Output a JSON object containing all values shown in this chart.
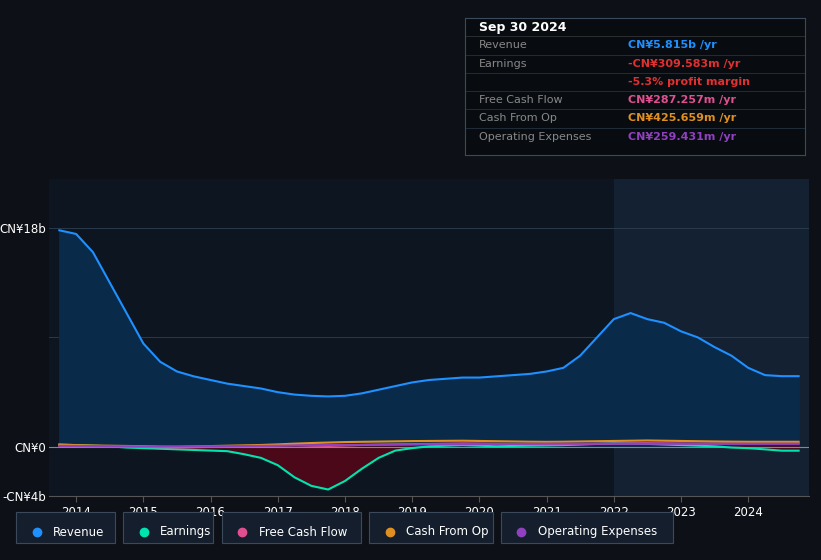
{
  "bg_color": "#0d1117",
  "plot_bg_color": "#0d1520",
  "grid_color": "#2a3a4a",
  "title": "Sep 30 2024",
  "ylim_low": -4000000000,
  "ylim_high": 22000000000,
  "xlim_low": 2013.6,
  "xlim_high": 2024.9,
  "highlight_x_start": 2022.0,
  "highlight_x_end": 2024.9,
  "revenue_color": "#1e90ff",
  "revenue_fill": "#0a2a4a",
  "earnings_color": "#00e5b0",
  "earnings_fill_neg": "#4a0818",
  "cash_flow_color": "#e05090",
  "cash_from_op_color": "#e09020",
  "op_expenses_color": "#9040c0",
  "xtick_years": [
    2014,
    2015,
    2016,
    2017,
    2018,
    2019,
    2020,
    2021,
    2022,
    2023,
    2024
  ],
  "info_title": "Sep 30 2024",
  "info_rows": [
    {
      "label": "Revenue",
      "value": "CN¥5.815b /yr",
      "value_color": "#1e90ff"
    },
    {
      "label": "Earnings",
      "value": "-CN¥309.583m /yr",
      "value_color": "#e03030"
    },
    {
      "label": "",
      "value": "-5.3% profit margin",
      "value_color": "#e03030"
    },
    {
      "label": "Free Cash Flow",
      "value": "CN¥287.257m /yr",
      "value_color": "#e05090"
    },
    {
      "label": "Cash From Op",
      "value": "CN¥425.659m /yr",
      "value_color": "#e09020"
    },
    {
      "label": "Operating Expenses",
      "value": "CN¥259.431m /yr",
      "value_color": "#9040c0"
    }
  ],
  "legend_items": [
    {
      "label": "Revenue",
      "color": "#1e90ff"
    },
    {
      "label": "Earnings",
      "color": "#00e5b0"
    },
    {
      "label": "Free Cash Flow",
      "color": "#e05090"
    },
    {
      "label": "Cash From Op",
      "color": "#e09020"
    },
    {
      "label": "Operating Expenses",
      "color": "#9040c0"
    }
  ],
  "years": [
    2013.75,
    2014.0,
    2014.25,
    2014.5,
    2014.75,
    2015.0,
    2015.25,
    2015.5,
    2015.75,
    2016.0,
    2016.25,
    2016.5,
    2016.75,
    2017.0,
    2017.25,
    2017.5,
    2017.75,
    2018.0,
    2018.25,
    2018.5,
    2018.75,
    2019.0,
    2019.25,
    2019.5,
    2019.75,
    2020.0,
    2020.25,
    2020.5,
    2020.75,
    2021.0,
    2021.25,
    2021.5,
    2021.75,
    2022.0,
    2022.25,
    2022.5,
    2022.75,
    2023.0,
    2023.25,
    2023.5,
    2023.75,
    2024.0,
    2024.25,
    2024.5,
    2024.75
  ],
  "revenue": [
    17800000000,
    17500000000,
    16000000000,
    13500000000,
    11000000000,
    8500000000,
    7000000000,
    6200000000,
    5800000000,
    5500000000,
    5200000000,
    5000000000,
    4800000000,
    4500000000,
    4300000000,
    4200000000,
    4150000000,
    4200000000,
    4400000000,
    4700000000,
    5000000000,
    5300000000,
    5500000000,
    5600000000,
    5700000000,
    5700000000,
    5800000000,
    5900000000,
    6000000000,
    6200000000,
    6500000000,
    7500000000,
    9000000000,
    10500000000,
    11000000000,
    10500000000,
    10200000000,
    9500000000,
    9000000000,
    8200000000,
    7500000000,
    6500000000,
    5900000000,
    5815000000,
    5815000000
  ],
  "earnings": [
    200000000,
    150000000,
    100000000,
    50000000,
    -50000000,
    -100000000,
    -150000000,
    -200000000,
    -250000000,
    -300000000,
    -350000000,
    -600000000,
    -900000000,
    -1500000000,
    -2500000000,
    -3200000000,
    -3500000000,
    -2800000000,
    -1800000000,
    -900000000,
    -300000000,
    -100000000,
    50000000,
    100000000,
    150000000,
    100000000,
    50000000,
    80000000,
    100000000,
    120000000,
    150000000,
    200000000,
    250000000,
    300000000,
    280000000,
    250000000,
    200000000,
    150000000,
    100000000,
    50000000,
    -50000000,
    -100000000,
    -200000000,
    -309000000,
    -309000000
  ],
  "free_cash_flow": [
    100000000,
    80000000,
    60000000,
    40000000,
    20000000,
    0,
    -30000000,
    -50000000,
    -30000000,
    0,
    30000000,
    60000000,
    80000000,
    120000000,
    150000000,
    100000000,
    80000000,
    120000000,
    160000000,
    190000000,
    210000000,
    230000000,
    250000000,
    270000000,
    290000000,
    280000000,
    260000000,
    240000000,
    220000000,
    200000000,
    210000000,
    230000000,
    250000000,
    270000000,
    290000000,
    310000000,
    295000000,
    280000000,
    265000000,
    280000000,
    290000000,
    285000000,
    287000000,
    287000000,
    287000000
  ],
  "cash_from_op": [
    180000000,
    150000000,
    120000000,
    100000000,
    80000000,
    60000000,
    20000000,
    10000000,
    40000000,
    70000000,
    100000000,
    130000000,
    160000000,
    210000000,
    270000000,
    320000000,
    360000000,
    400000000,
    420000000,
    440000000,
    460000000,
    480000000,
    490000000,
    500000000,
    510000000,
    490000000,
    470000000,
    450000000,
    430000000,
    420000000,
    430000000,
    450000000,
    470000000,
    490000000,
    510000000,
    530000000,
    510000000,
    490000000,
    470000000,
    450000000,
    435000000,
    425000000,
    425000000,
    425000000,
    425000000
  ],
  "op_expenses": [
    90000000,
    80000000,
    70000000,
    60000000,
    50000000,
    40000000,
    30000000,
    35000000,
    45000000,
    55000000,
    65000000,
    75000000,
    85000000,
    100000000,
    120000000,
    140000000,
    155000000,
    165000000,
    175000000,
    185000000,
    195000000,
    205000000,
    215000000,
    220000000,
    225000000,
    230000000,
    235000000,
    245000000,
    255000000,
    265000000,
    265000000,
    265000000,
    265000000,
    265000000,
    260000000,
    260000000,
    258000000,
    258000000,
    258000000,
    258000000,
    258000000,
    258000000,
    259000000,
    259000000,
    259000000
  ]
}
